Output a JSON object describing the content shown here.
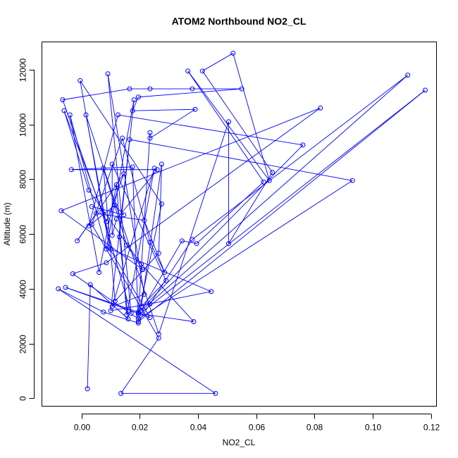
{
  "chart_data": {
    "type": "line",
    "title": "ATOM2 Northbound NO2_CL",
    "xlabel": "NO2_CL",
    "ylabel": "Altitude (m)",
    "xlim": [
      -0.0135,
      0.122
    ],
    "ylim": [
      -300,
      13000
    ],
    "x_ticks": [
      0.0,
      0.02,
      0.04,
      0.06,
      0.08,
      0.1,
      0.12
    ],
    "x_tick_labels": [
      "0.00",
      "0.02",
      "0.04",
      "0.06",
      "0.08",
      "0.10",
      "0.12"
    ],
    "y_ticks": [
      0,
      2000,
      4000,
      6000,
      8000,
      10000,
      12000
    ],
    "y_tick_labels": [
      "0",
      "2000",
      "4000",
      "6000",
      "8000",
      "10000",
      "12000"
    ],
    "grid": false,
    "colors": {
      "series": "#0000ff",
      "axes": "#000000",
      "background": "#ffffff"
    },
    "series": [
      {
        "points": [
          [
            0.002,
            350
          ],
          [
            0.003,
            4150
          ],
          [
            0.016,
            2900
          ],
          [
            0.013,
            5900
          ],
          [
            0.018,
            10900
          ],
          [
            0.0085,
            5450
          ],
          [
            -0.004,
            10350
          ],
          [
            0.006,
            4600
          ],
          [
            0.012,
            7800
          ],
          [
            0.0155,
            3050
          ],
          [
            0.025,
            8400
          ],
          [
            0.0105,
            3350
          ],
          [
            0.0215,
            3800
          ],
          [
            0.009,
            11850
          ],
          [
            0.017,
            3100
          ],
          [
            0.007,
            6800
          ],
          [
            -0.0065,
            10900
          ],
          [
            0.0165,
            11300
          ],
          [
            0.0235,
            11300
          ],
          [
            0.038,
            11300
          ],
          [
            0.055,
            11300
          ],
          [
            0.0195,
            11000
          ],
          [
            0.0175,
            10500
          ],
          [
            0.039,
            10550
          ],
          [
            0.0235,
            9500
          ],
          [
            0.0235,
            9700
          ],
          [
            0.0195,
            3100
          ],
          [
            0.0385,
            2800
          ],
          [
            0.0205,
            4900
          ],
          [
            0.0025,
            7600
          ],
          [
            -0.006,
            10500
          ],
          [
            0.0085,
            6450
          ],
          [
            0.0145,
            8200
          ],
          [
            -0.0015,
            5750
          ],
          [
            0.005,
            6750
          ],
          [
            0.0215,
            6500
          ],
          [
            0.0285,
            4600
          ],
          [
            0.0235,
            5700
          ],
          [
            0.014,
            9500
          ],
          [
            0.0035,
            6350
          ],
          [
            0.0265,
            2200
          ],
          [
            0.0135,
            180
          ],
          [
            0.046,
            180
          ],
          [
            -0.008,
            4000
          ],
          [
            0.0075,
            3150
          ],
          [
            0.0195,
            2750
          ],
          [
            0.0175,
            8450
          ],
          [
            -0.0035,
            8350
          ],
          [
            0.026,
            8350
          ],
          [
            0.012,
            6550
          ],
          [
            0.0105,
            5950
          ],
          [
            0.0105,
            8550
          ],
          [
            0.029,
            4300
          ],
          [
            0.0205,
            3350
          ],
          [
            0.0275,
            8550
          ],
          [
            0.0265,
            5300
          ],
          [
            0.0115,
            3550
          ],
          [
            0.0075,
            8400
          ],
          [
            0.0155,
            5600
          ],
          [
            0.021,
            4700
          ],
          [
            -0.007,
            6850
          ],
          [
            0.082,
            10600
          ],
          [
            0.0085,
            4950
          ],
          [
            -0.003,
            4550
          ],
          [
            0.0195,
            2900
          ],
          [
            0.093,
            7950
          ],
          [
            0.0165,
            9450
          ],
          [
            0.01,
            3200
          ],
          [
            0.0235,
            3450
          ],
          [
            0.0445,
            3900
          ],
          [
            0.01,
            5450
          ],
          [
            0.0015,
            10350
          ],
          [
            0.0265,
            2350
          ],
          [
            0.0505,
            10100
          ],
          [
            0.0505,
            5650
          ],
          [
            0.0655,
            8250
          ],
          [
            0.0415,
            11950
          ],
          [
            0.052,
            12600
          ],
          [
            0.0645,
            7950
          ],
          [
            0.0365,
            11950
          ],
          [
            0.0625,
            7900
          ],
          [
            0.0395,
            5650
          ],
          [
            0.0345,
            5750
          ],
          [
            0.0205,
            3200
          ],
          [
            0.112,
            11800
          ],
          [
            0.038,
            5800
          ],
          [
            0.0195,
            2800
          ],
          [
            0.118,
            11250
          ],
          [
            0.0195,
            3050
          ],
          [
            0.0275,
            7100
          ],
          [
            -0.0005,
            11600
          ],
          [
            0.0095,
            5500
          ],
          [
            0.0235,
            2950
          ],
          [
            -0.0055,
            4050
          ],
          [
            0.0195,
            3150
          ],
          [
            0.076,
            9250
          ],
          [
            0.0125,
            10350
          ],
          [
            0.0025,
            6300
          ],
          [
            0.0115,
            7050
          ],
          [
            0.0145,
            6700
          ],
          [
            0.0035,
            7000
          ]
        ]
      }
    ]
  }
}
